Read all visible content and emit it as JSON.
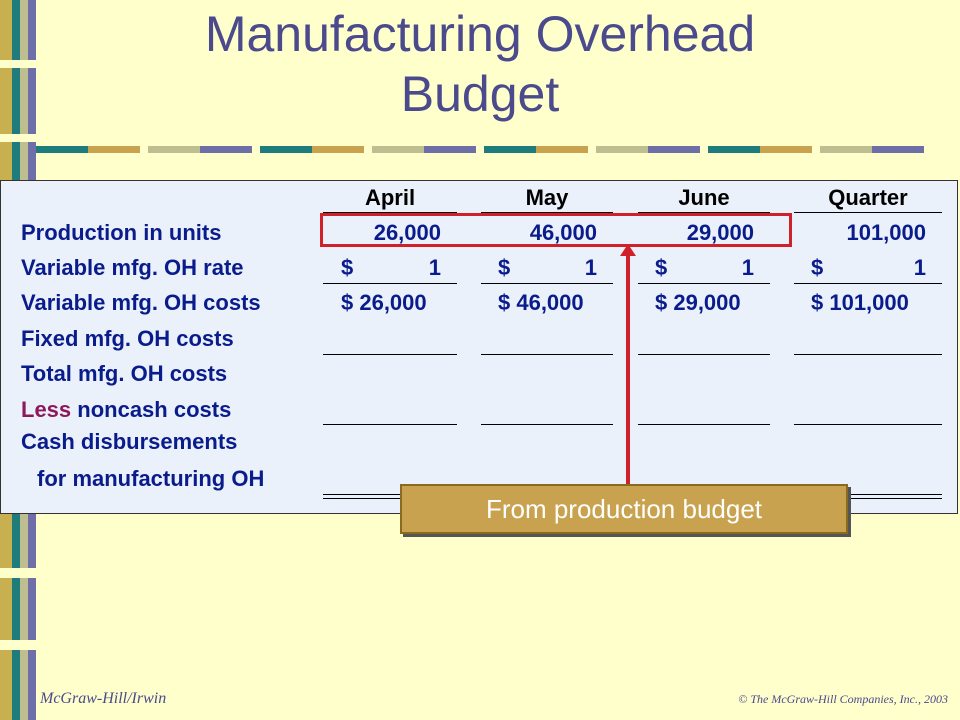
{
  "slide": {
    "title_line1": "Manufacturing Overhead",
    "title_line2": "Budget"
  },
  "colors": {
    "background": "#FFFFCC",
    "title": "#4A4A8C",
    "row_label": "#0A1C8C",
    "less_word": "#8C1A5A",
    "highlight": "#D0202A",
    "callout_fill": "#C8A24E",
    "panel": "#EAF1FB"
  },
  "table": {
    "columns": [
      "April",
      "May",
      "June",
      "Quarter"
    ],
    "rows": {
      "production_units": {
        "label": "Production in units",
        "values": [
          "26,000",
          "46,000",
          "29,000",
          "101,000"
        ]
      },
      "var_rate": {
        "label": "Variable mfg. OH rate",
        "currency": "$",
        "values": [
          "1",
          "1",
          "1",
          "1"
        ]
      },
      "var_costs": {
        "label": "Variable mfg. OH costs",
        "values": [
          "$ 26,000",
          "$ 46,000",
          "$ 29,000",
          "$ 101,000"
        ]
      },
      "fixed_costs": {
        "label": "Fixed mfg. OH costs"
      },
      "total_costs": {
        "label": "Total mfg. OH costs"
      },
      "less_noncash": {
        "label_prefix": "Less",
        "label_rest": " noncash costs"
      },
      "cash_disb": {
        "label_line1": "Cash disbursements",
        "label_line2": "for manufacturing OH"
      }
    }
  },
  "callout": {
    "text": "From production budget"
  },
  "footer": {
    "left": "McGraw-Hill/Irwin",
    "right": "© The McGraw-Hill Companies, Inc., 2003"
  }
}
